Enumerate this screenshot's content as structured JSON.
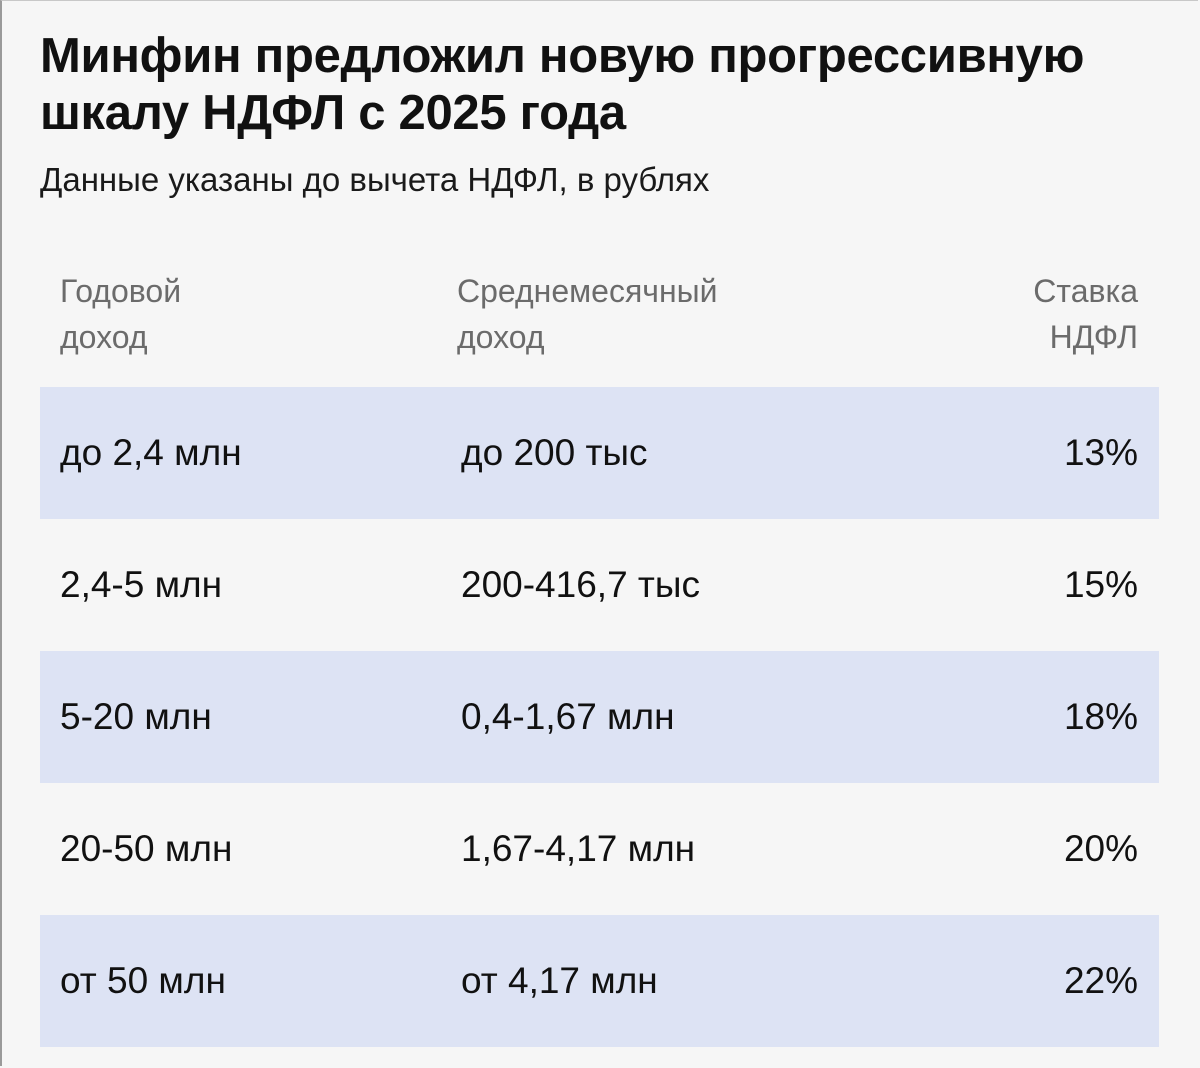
{
  "chart_data": {
    "type": "table",
    "title": "Минфин предложил новую прогрессивную\nшкалу НДФЛ с 2025 года",
    "subtitle": "Данные указаны до вычета НДФЛ, в рублях",
    "columns": [
      "Годовой\nдоход",
      "Среднемесячный\nдоход",
      "Ставка\nНДФЛ"
    ],
    "rows": [
      [
        "до 2,4 млн",
        "до 200 тыс",
        "13%"
      ],
      [
        "2,4-5 млн",
        "200-416,7 тыс",
        "15%"
      ],
      [
        "5-20 млн",
        "0,4-1,67 млн",
        "18%"
      ],
      [
        "20-50 млн",
        "1,67-4,17 млн",
        "20%"
      ],
      [
        "от 50 млн",
        "от 4,17 млн",
        "22%"
      ]
    ],
    "rate_values": [
      13,
      15,
      18,
      20,
      22
    ]
  },
  "colors": {
    "background": "#f6f6f6",
    "row_shade": "#dde3f4",
    "header_text": "#6b6b6b",
    "body_text": "#111111"
  }
}
